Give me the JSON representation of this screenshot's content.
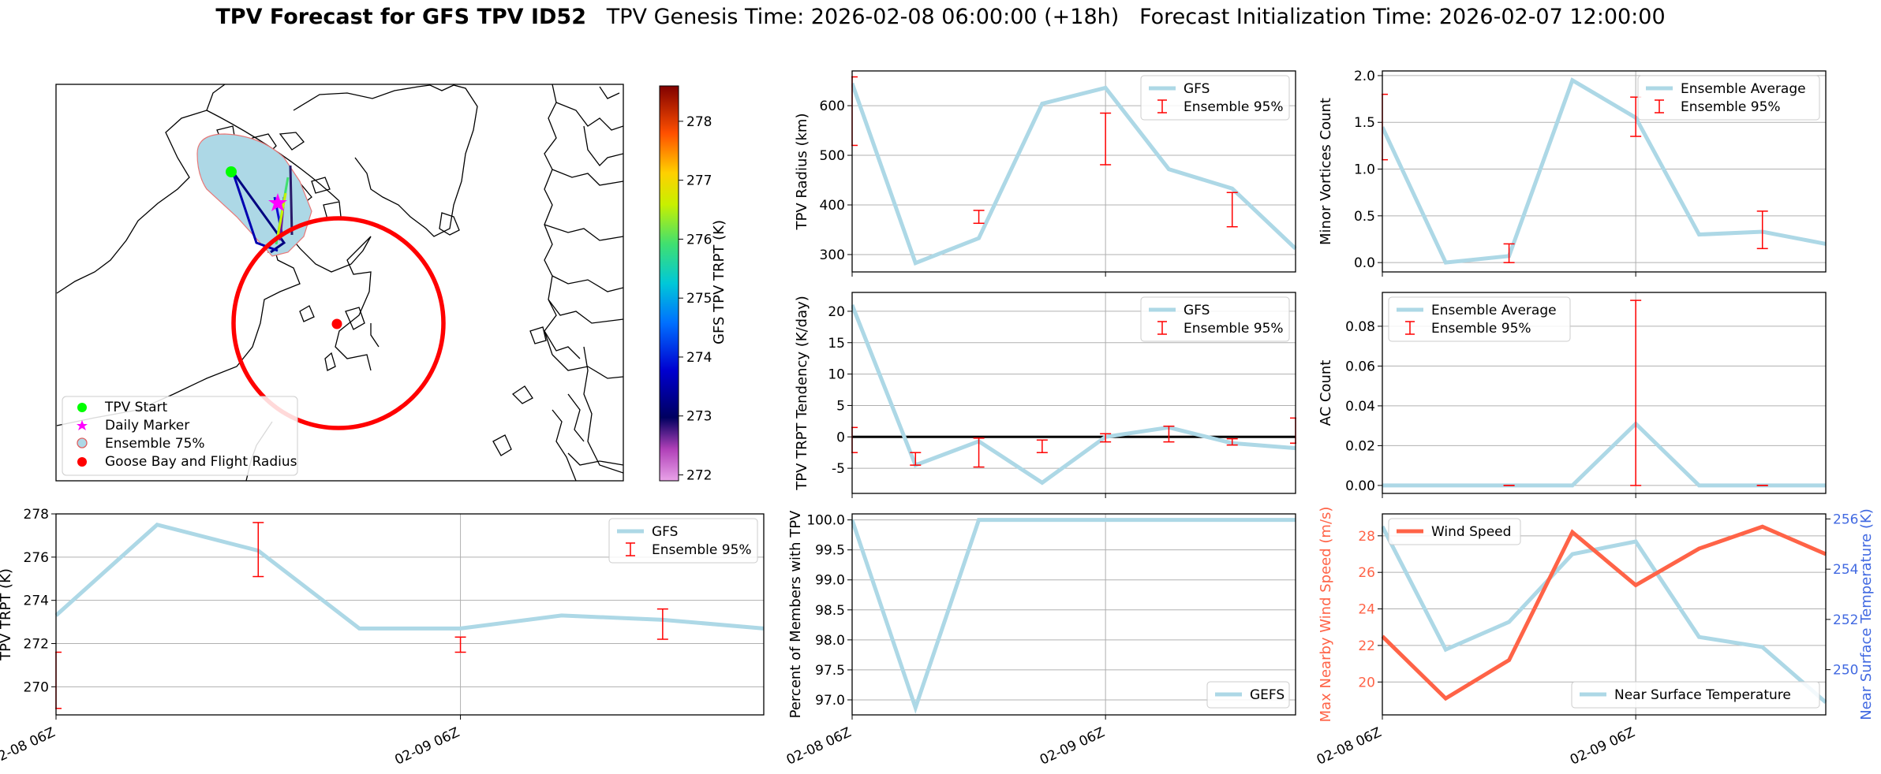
{
  "title": {
    "bold": "TPV Forecast for GFS TPV ID52",
    "genesis": "TPV Genesis Time: 2026-02-08 06:00:00 (+18h)",
    "init": "Forecast Initialization Time: 2026-02-07 12:00:00"
  },
  "colors": {
    "line": "#add8e6",
    "error": "#ff0000",
    "wind": "#ff6347",
    "temp_axis": "#4169e1",
    "ensemble_fill": "#add8e6",
    "circle": "#ff0000"
  },
  "chart_data": [
    {
      "id": "map",
      "type": "map",
      "legend": [
        "TPV Start",
        "Daily Marker",
        "Ensemble 75%",
        "Goose Bay and Flight Radius"
      ],
      "colorbar": {
        "label": "GFS TPV TRPT (K)",
        "ticks": [
          272,
          273,
          274,
          275,
          276,
          277,
          278
        ],
        "range": [
          271.9,
          278.6
        ]
      }
    },
    {
      "id": "radius",
      "type": "line",
      "ylabel": "TPV Radius (km)",
      "ylim": [
        265,
        670
      ],
      "yticks": [
        300,
        400,
        500,
        600
      ],
      "x": [
        0,
        1,
        2,
        3,
        4,
        5,
        6,
        7
      ],
      "series": [
        {
          "name": "GFS",
          "values": [
            645,
            283,
            333,
            604,
            636,
            472,
            433,
            312
          ]
        }
      ],
      "errorbars": {
        "name": "Ensemble 95%",
        "x": [
          0,
          2,
          4,
          6
        ],
        "low": [
          520,
          363,
          481,
          356
        ],
        "high": [
          658,
          389,
          585,
          425
        ]
      },
      "legend": [
        "GFS",
        "Ensemble 95%"
      ]
    },
    {
      "id": "minor",
      "type": "line",
      "ylabel": "Minor Vortices Count",
      "ylim": [
        -0.1,
        2.05
      ],
      "yticks": [
        "0.0",
        "0.5",
        "1.0",
        "1.5",
        "2.0"
      ],
      "x": [
        0,
        1,
        2,
        3,
        4,
        5,
        6,
        7
      ],
      "series": [
        {
          "name": "Ensemble Average",
          "values": [
            1.45,
            0.0,
            0.07,
            1.95,
            1.55,
            0.3,
            0.33,
            0.2
          ]
        }
      ],
      "errorbars": {
        "name": "Ensemble 95%",
        "x": [
          0,
          2,
          4,
          6
        ],
        "low": [
          1.1,
          0.0,
          1.35,
          0.15
        ],
        "high": [
          1.8,
          0.2,
          1.77,
          0.55
        ]
      },
      "legend": [
        "Ensemble Average",
        "Ensemble 95%"
      ]
    },
    {
      "id": "tendency",
      "type": "line",
      "ylabel": "TPV TRPT Tendency (K/day)",
      "ylim": [
        -9,
        23
      ],
      "yticks": [
        -5,
        0,
        5,
        10,
        15,
        20
      ],
      "x": [
        0,
        1,
        2,
        3,
        4,
        5,
        6,
        7
      ],
      "series": [
        {
          "name": "GFS",
          "values": [
            21,
            -4.5,
            -0.7,
            -7.3,
            0,
            1.5,
            -1,
            -1.8
          ]
        }
      ],
      "errorbars": {
        "name": "Ensemble 95%",
        "x": [
          0,
          1,
          2,
          3,
          4,
          5,
          6,
          7
        ],
        "low": [
          -2.5,
          -4.5,
          -4.8,
          -2.5,
          -0.8,
          -0.8,
          -1.3,
          -1.0
        ],
        "high": [
          1.5,
          -2.5,
          -0.2,
          -0.5,
          0.5,
          1.7,
          -0.3,
          3.0
        ]
      },
      "legend": [
        "GFS",
        "Ensemble 95%"
      ]
    },
    {
      "id": "ac",
      "type": "line",
      "ylabel": "AC Count",
      "ylim": [
        -0.004,
        0.097
      ],
      "yticks": [
        "0.00",
        "0.02",
        "0.04",
        "0.06",
        "0.08"
      ],
      "x": [
        0,
        1,
        2,
        3,
        4,
        5,
        6,
        7
      ],
      "series": [
        {
          "name": "Ensemble Average",
          "values": [
            0,
            0,
            0,
            0,
            0.031,
            0,
            0,
            0
          ]
        }
      ],
      "errorbars": {
        "name": "Ensemble 95%",
        "x": [
          2,
          4,
          6
        ],
        "low": [
          0,
          0,
          0
        ],
        "high": [
          0,
          0.093,
          0
        ]
      },
      "legend": [
        "Ensemble Average",
        "Ensemble 95%"
      ]
    },
    {
      "id": "trpt",
      "type": "line",
      "ylabel": "TPV TRPT (K)",
      "ylim": [
        268.7,
        278
      ],
      "yticks": [
        270,
        272,
        274,
        276,
        278
      ],
      "x": [
        0,
        1,
        2,
        3,
        4,
        5,
        6,
        7
      ],
      "xticks": [
        "02-08 06Z",
        "02-09 06Z"
      ],
      "series": [
        {
          "name": "GFS",
          "values": [
            273.3,
            277.5,
            276.3,
            272.7,
            272.7,
            273.3,
            273.1,
            272.7
          ]
        }
      ],
      "errorbars": {
        "name": "Ensemble 95%",
        "x": [
          0,
          2,
          4,
          6
        ],
        "low": [
          269.0,
          275.1,
          271.6,
          272.2
        ],
        "high": [
          271.6,
          277.6,
          272.3,
          273.6
        ]
      },
      "legend": [
        "GFS",
        "Ensemble 95%"
      ]
    },
    {
      "id": "percent",
      "type": "line",
      "ylabel": "Percent of Members with TPV",
      "ylim": [
        96.75,
        100.1
      ],
      "yticks": [
        "97.0",
        "97.5",
        "98.0",
        "98.5",
        "99.0",
        "99.5",
        "100.0"
      ],
      "x": [
        0,
        1,
        2,
        3,
        4,
        5,
        6,
        7
      ],
      "xticks": [
        "02-08 06Z",
        "02-09 06Z"
      ],
      "series": [
        {
          "name": "GEFS",
          "values": [
            100,
            96.87,
            100,
            100,
            100,
            100,
            100,
            100
          ]
        }
      ],
      "legend": [
        "GEFS"
      ]
    },
    {
      "id": "wind",
      "type": "line",
      "ylabel": "Max Nearby Wind Speed (m/s)",
      "ylabel_right": "Near Surface Temperature (K)",
      "ylim": [
        18.2,
        29.2
      ],
      "ylim_right": [
        248.2,
        256.2
      ],
      "yticks": [
        20,
        22,
        24,
        26,
        28
      ],
      "yticks_right": [
        250,
        252,
        254,
        256
      ],
      "x": [
        0,
        1,
        2,
        3,
        4,
        5,
        6,
        7
      ],
      "xticks": [
        "02-08 06Z",
        "02-09 06Z"
      ],
      "series": [
        {
          "name": "Wind Speed",
          "values": [
            22.5,
            19.1,
            21.2,
            28.2,
            25.3,
            27.3,
            28.5,
            27
          ]
        },
        {
          "name": "Near Surface Temperature",
          "values": [
            255.7,
            250.8,
            251.9,
            254.6,
            255.1,
            251.3,
            250.9,
            248.7
          ]
        }
      ],
      "legend": [
        "Wind Speed",
        "Near Surface Temperature"
      ]
    }
  ]
}
